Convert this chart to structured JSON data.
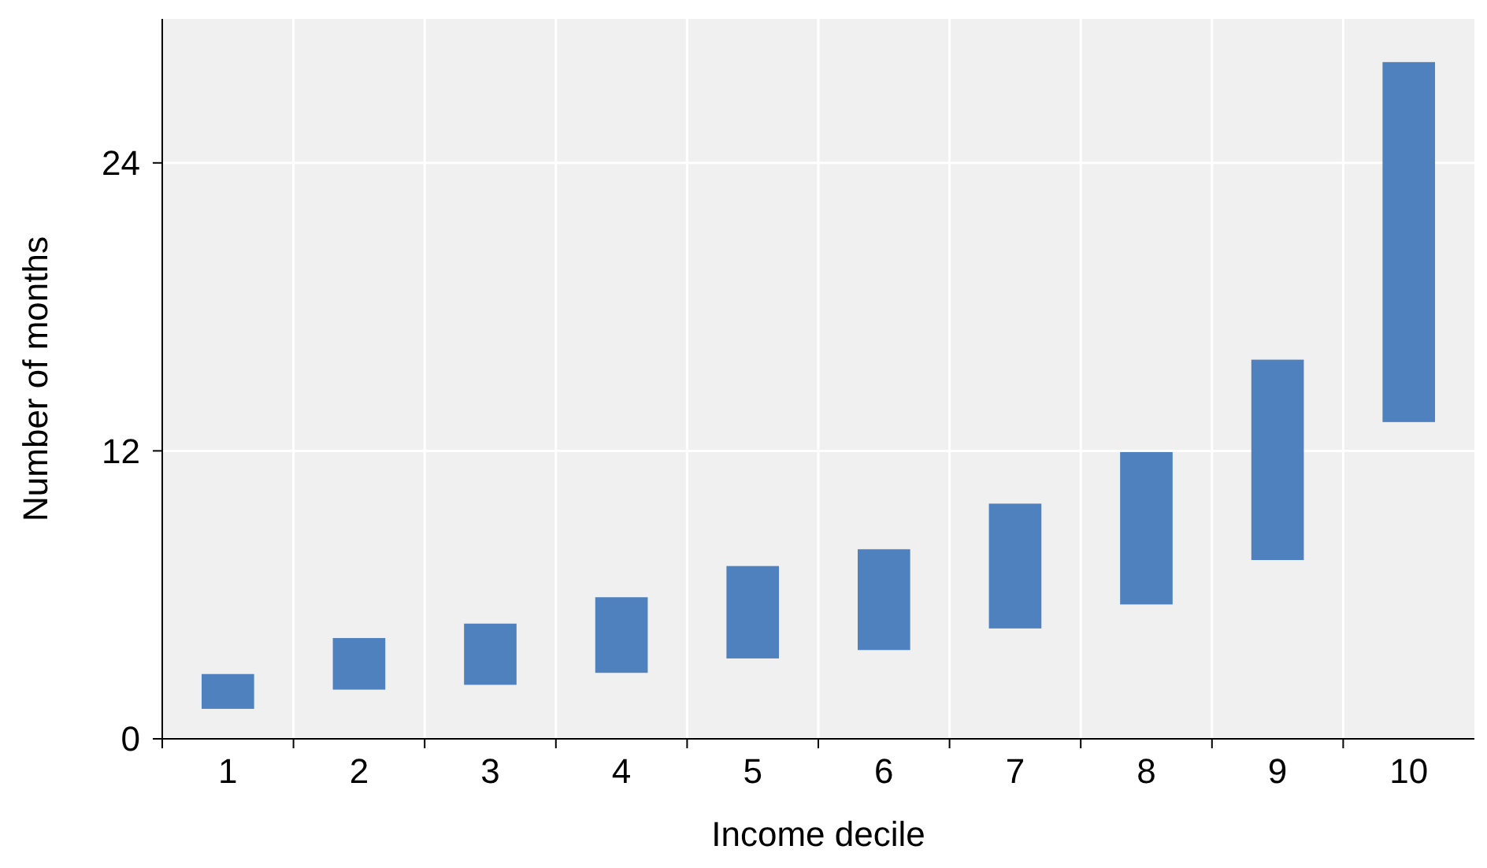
{
  "chart_data": {
    "type": "bar",
    "xlabel": "Income decile",
    "ylabel": "Number of months",
    "categories": [
      "1",
      "2",
      "3",
      "4",
      "5",
      "6",
      "7",
      "8",
      "9",
      "10"
    ],
    "base": [
      1.25,
      2.05,
      2.25,
      2.75,
      3.35,
      3.7,
      4.6,
      5.6,
      7.45,
      13.2
    ],
    "values": [
      1.45,
      2.15,
      2.55,
      3.15,
      3.85,
      4.2,
      5.2,
      6.35,
      8.35,
      15
    ],
    "color": "#4e81bd",
    "ylim": [
      0,
      30
    ],
    "yticks": [
      0,
      12,
      24
    ],
    "grid": true
  }
}
